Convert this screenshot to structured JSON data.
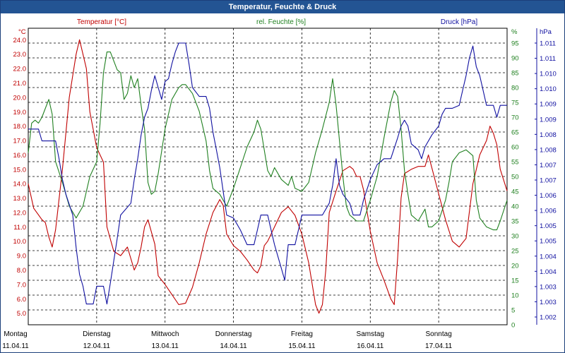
{
  "window": {
    "title": "Temperatur, Feuchte & Druck"
  },
  "colors": {
    "temperature": "#c00000",
    "humidity": "#208020",
    "pressure": "#1010a0",
    "titlebar": "#235493"
  },
  "chart_data": {
    "type": "line",
    "title": "Temperatur, Feuchte & Druck",
    "grid": true,
    "x_ticks": [
      {
        "day": "Montag",
        "date": "11.04.11",
        "pos": 0
      },
      {
        "day": "Dienstag",
        "date": "12.04.11",
        "pos": 1
      },
      {
        "day": "Mittwoch",
        "date": "13.04.11",
        "pos": 2
      },
      {
        "day": "Donnerstag",
        "date": "14.04.11",
        "pos": 3
      },
      {
        "day": "Freitag",
        "date": "15.04.11",
        "pos": 4
      },
      {
        "day": "Samstag",
        "date": "16.04.11",
        "pos": 5
      },
      {
        "day": "Sonntag",
        "date": "17.04.11",
        "pos": 6
      }
    ],
    "xlim": [
      0,
      7
    ],
    "axes": {
      "temperature": {
        "header": "Temperatur [°C]",
        "unit": "°C",
        "ylim": [
          4.2,
          24.8
        ],
        "ticks": [
          "24.0",
          "23.0",
          "22.0",
          "21.0",
          "20.0",
          "19.0",
          "18.0",
          "17.0",
          "16.0",
          "15.0",
          "14.0",
          "13.0",
          "12.0",
          "11.0",
          "10.0",
          "9.0",
          "8.0",
          "7.0",
          "6.0",
          "5.0"
        ]
      },
      "humidity": {
        "header": "rel. Feuchte [%]",
        "unit": "%",
        "ylim": [
          0,
          100
        ],
        "ticks": [
          "95",
          "90",
          "85",
          "80",
          "75",
          "70",
          "65",
          "60",
          "55",
          "50",
          "45",
          "40",
          "35",
          "30",
          "25",
          "20",
          "15",
          "10",
          "5",
          "0"
        ]
      },
      "pressure": {
        "header": "Druck [hPa]",
        "unit": "hPa",
        "ylim": [
          1001.6,
          1011.6
        ],
        "ticks": [
          "1.011",
          "1.011",
          "1.010",
          "1.010",
          "1.009",
          "1.009",
          "1.008",
          "1.008",
          "1.007",
          "1.007",
          "1.006",
          "1.006",
          "1.005",
          "1.005",
          "1.004",
          "1.004",
          "1.003",
          "1.003",
          "1.002"
        ]
      }
    },
    "series": [
      {
        "name": "Temperatur [°C]",
        "axis": "temperature",
        "color": "#c00000",
        "points": [
          [
            0,
            14.0
          ],
          [
            0.08,
            12.3
          ],
          [
            0.2,
            11.5
          ],
          [
            0.25,
            11.3
          ],
          [
            0.3,
            10.3
          ],
          [
            0.35,
            9.6
          ],
          [
            0.4,
            10.8
          ],
          [
            0.5,
            15.0
          ],
          [
            0.6,
            20.0
          ],
          [
            0.7,
            23.0
          ],
          [
            0.75,
            24.0
          ],
          [
            0.85,
            22.0
          ],
          [
            0.9,
            19.0
          ],
          [
            1.0,
            16.5
          ],
          [
            1.1,
            15.5
          ],
          [
            1.15,
            11.0
          ],
          [
            1.25,
            9.3
          ],
          [
            1.35,
            9.0
          ],
          [
            1.45,
            9.6
          ],
          [
            1.55,
            8.0
          ],
          [
            1.6,
            8.5
          ],
          [
            1.65,
            9.6
          ],
          [
            1.7,
            11.0
          ],
          [
            1.75,
            11.5
          ],
          [
            1.85,
            9.8
          ],
          [
            1.9,
            7.6
          ],
          [
            2.0,
            7.0
          ],
          [
            2.1,
            6.3
          ],
          [
            2.2,
            5.6
          ],
          [
            2.3,
            5.7
          ],
          [
            2.4,
            6.8
          ],
          [
            2.5,
            8.5
          ],
          [
            2.6,
            10.5
          ],
          [
            2.7,
            12.0
          ],
          [
            2.8,
            12.9
          ],
          [
            2.85,
            12.5
          ],
          [
            2.9,
            10.5
          ],
          [
            3.0,
            9.7
          ],
          [
            3.1,
            9.3
          ],
          [
            3.2,
            8.7
          ],
          [
            3.3,
            8.0
          ],
          [
            3.35,
            7.8
          ],
          [
            3.4,
            8.3
          ],
          [
            3.45,
            9.7
          ],
          [
            3.5,
            10.0
          ],
          [
            3.6,
            11.0
          ],
          [
            3.7,
            12.0
          ],
          [
            3.8,
            12.4
          ],
          [
            3.9,
            11.8
          ],
          [
            4.0,
            10.5
          ],
          [
            4.1,
            8.5
          ],
          [
            4.2,
            5.6
          ],
          [
            4.25,
            5.0
          ],
          [
            4.3,
            5.6
          ],
          [
            4.35,
            8.0
          ],
          [
            4.4,
            12.0
          ],
          [
            4.5,
            13.5
          ],
          [
            4.6,
            14.9
          ],
          [
            4.7,
            15.2
          ],
          [
            4.75,
            15.0
          ],
          [
            4.8,
            14.5
          ],
          [
            4.85,
            14.5
          ],
          [
            4.9,
            13.6
          ],
          [
            5.0,
            10.7
          ],
          [
            5.1,
            8.5
          ],
          [
            5.2,
            7.3
          ],
          [
            5.3,
            6.0
          ],
          [
            5.35,
            5.6
          ],
          [
            5.4,
            8.8
          ],
          [
            5.45,
            13.0
          ],
          [
            5.5,
            14.7
          ],
          [
            5.6,
            15.0
          ],
          [
            5.7,
            15.2
          ],
          [
            5.8,
            15.2
          ],
          [
            5.85,
            16.0
          ],
          [
            5.9,
            15.1
          ],
          [
            6.0,
            13.3
          ],
          [
            6.1,
            11.5
          ],
          [
            6.2,
            10.0
          ],
          [
            6.3,
            9.6
          ],
          [
            6.4,
            10.2
          ],
          [
            6.5,
            14.0
          ],
          [
            6.6,
            16.0
          ],
          [
            6.7,
            17.0
          ],
          [
            6.75,
            18.0
          ],
          [
            6.8,
            17.5
          ],
          [
            6.85,
            16.7
          ],
          [
            6.9,
            15.0
          ],
          [
            7.0,
            13.5
          ]
        ]
      },
      {
        "name": "rel. Feuchte [%]",
        "axis": "humidity",
        "color": "#208020",
        "points": [
          [
            0,
            58
          ],
          [
            0.05,
            68
          ],
          [
            0.1,
            69
          ],
          [
            0.15,
            68
          ],
          [
            0.2,
            70
          ],
          [
            0.3,
            76
          ],
          [
            0.35,
            71
          ],
          [
            0.4,
            55
          ],
          [
            0.5,
            48
          ],
          [
            0.6,
            40
          ],
          [
            0.7,
            36
          ],
          [
            0.8,
            40
          ],
          [
            0.9,
            50
          ],
          [
            1.0,
            55
          ],
          [
            1.05,
            68
          ],
          [
            1.1,
            85
          ],
          [
            1.15,
            92
          ],
          [
            1.2,
            92
          ],
          [
            1.3,
            86
          ],
          [
            1.35,
            85
          ],
          [
            1.4,
            76
          ],
          [
            1.45,
            78
          ],
          [
            1.5,
            84
          ],
          [
            1.55,
            80
          ],
          [
            1.6,
            83
          ],
          [
            1.65,
            74
          ],
          [
            1.7,
            66
          ],
          [
            1.75,
            48
          ],
          [
            1.8,
            44
          ],
          [
            1.85,
            45
          ],
          [
            1.9,
            51
          ],
          [
            2.0,
            66
          ],
          [
            2.1,
            76
          ],
          [
            2.2,
            80
          ],
          [
            2.25,
            81
          ],
          [
            2.3,
            81
          ],
          [
            2.4,
            78
          ],
          [
            2.5,
            72
          ],
          [
            2.6,
            62
          ],
          [
            2.65,
            52
          ],
          [
            2.7,
            46
          ],
          [
            2.8,
            44
          ],
          [
            2.9,
            40
          ],
          [
            3.0,
            46
          ],
          [
            3.1,
            53
          ],
          [
            3.2,
            60
          ],
          [
            3.3,
            65
          ],
          [
            3.35,
            69
          ],
          [
            3.4,
            66
          ],
          [
            3.5,
            52
          ],
          [
            3.55,
            50
          ],
          [
            3.6,
            53
          ],
          [
            3.7,
            49
          ],
          [
            3.8,
            47
          ],
          [
            3.85,
            50
          ],
          [
            3.9,
            46
          ],
          [
            4.0,
            45
          ],
          [
            4.1,
            48
          ],
          [
            4.2,
            58
          ],
          [
            4.3,
            66
          ],
          [
            4.4,
            75
          ],
          [
            4.45,
            83
          ],
          [
            4.5,
            74
          ],
          [
            4.6,
            50
          ],
          [
            4.65,
            40
          ],
          [
            4.7,
            37
          ],
          [
            4.8,
            35
          ],
          [
            4.9,
            35
          ],
          [
            5.0,
            42
          ],
          [
            5.1,
            50
          ],
          [
            5.2,
            63
          ],
          [
            5.3,
            75
          ],
          [
            5.35,
            79
          ],
          [
            5.4,
            77
          ],
          [
            5.45,
            66
          ],
          [
            5.5,
            52
          ],
          [
            5.55,
            44
          ],
          [
            5.6,
            37
          ],
          [
            5.7,
            35
          ],
          [
            5.8,
            39
          ],
          [
            5.85,
            33
          ],
          [
            5.9,
            33
          ],
          [
            6.0,
            35
          ],
          [
            6.1,
            42
          ],
          [
            6.15,
            48
          ],
          [
            6.2,
            55
          ],
          [
            6.3,
            58
          ],
          [
            6.4,
            59
          ],
          [
            6.5,
            57
          ],
          [
            6.55,
            42
          ],
          [
            6.6,
            36
          ],
          [
            6.7,
            33
          ],
          [
            6.8,
            32
          ],
          [
            6.85,
            32
          ],
          [
            6.9,
            35
          ],
          [
            7.0,
            42
          ]
        ]
      },
      {
        "name": "Druck [hPa]",
        "axis": "pressure",
        "color": "#1010a0",
        "points": [
          [
            0,
            1008.2
          ],
          [
            0.15,
            1008.2
          ],
          [
            0.2,
            1007.8
          ],
          [
            0.4,
            1007.8
          ],
          [
            0.45,
            1007.2
          ],
          [
            0.5,
            1006.5
          ],
          [
            0.55,
            1006.0
          ],
          [
            0.65,
            1005.3
          ],
          [
            0.7,
            1004.2
          ],
          [
            0.75,
            1003.3
          ],
          [
            0.8,
            1002.9
          ],
          [
            0.85,
            1002.3
          ],
          [
            0.95,
            1002.3
          ],
          [
            1.0,
            1002.9
          ],
          [
            1.1,
            1002.9
          ],
          [
            1.15,
            1002.3
          ],
          [
            1.2,
            1003.0
          ],
          [
            1.3,
            1004.5
          ],
          [
            1.35,
            1005.3
          ],
          [
            1.5,
            1005.7
          ],
          [
            1.55,
            1006.5
          ],
          [
            1.6,
            1007.2
          ],
          [
            1.65,
            1008.0
          ],
          [
            1.7,
            1008.6
          ],
          [
            1.75,
            1008.9
          ],
          [
            1.8,
            1009.5
          ],
          [
            1.85,
            1010.0
          ],
          [
            1.9,
            1009.6
          ],
          [
            1.95,
            1009.2
          ],
          [
            2.0,
            1009.8
          ],
          [
            2.05,
            1009.9
          ],
          [
            2.1,
            1010.4
          ],
          [
            2.15,
            1010.8
          ],
          [
            2.2,
            1011.1
          ],
          [
            2.3,
            1011.1
          ],
          [
            2.35,
            1010.4
          ],
          [
            2.4,
            1009.6
          ],
          [
            2.5,
            1009.3
          ],
          [
            2.6,
            1009.3
          ],
          [
            2.65,
            1008.9
          ],
          [
            2.7,
            1008.1
          ],
          [
            2.75,
            1007.5
          ],
          [
            2.8,
            1006.9
          ],
          [
            2.85,
            1006.1
          ],
          [
            2.9,
            1005.3
          ],
          [
            3.0,
            1005.2
          ],
          [
            3.1,
            1004.8
          ],
          [
            3.2,
            1004.3
          ],
          [
            3.3,
            1004.3
          ],
          [
            3.35,
            1004.8
          ],
          [
            3.4,
            1005.3
          ],
          [
            3.5,
            1005.3
          ],
          [
            3.55,
            1004.8
          ],
          [
            3.6,
            1004.3
          ],
          [
            3.7,
            1003.5
          ],
          [
            3.75,
            1003.1
          ],
          [
            3.8,
            1004.3
          ],
          [
            3.9,
            1004.3
          ],
          [
            3.95,
            1004.8
          ],
          [
            4.0,
            1005.3
          ],
          [
            4.1,
            1005.3
          ],
          [
            4.2,
            1005.3
          ],
          [
            4.3,
            1005.3
          ],
          [
            4.4,
            1005.7
          ],
          [
            4.45,
            1006.3
          ],
          [
            4.5,
            1007.2
          ],
          [
            4.55,
            1006.3
          ],
          [
            4.6,
            1006.0
          ],
          [
            4.7,
            1005.7
          ],
          [
            4.75,
            1005.3
          ],
          [
            4.85,
            1005.3
          ],
          [
            4.9,
            1005.8
          ],
          [
            5.0,
            1006.5
          ],
          [
            5.1,
            1007.0
          ],
          [
            5.2,
            1007.2
          ],
          [
            5.3,
            1007.2
          ],
          [
            5.4,
            1007.9
          ],
          [
            5.45,
            1008.3
          ],
          [
            5.5,
            1008.5
          ],
          [
            5.55,
            1008.3
          ],
          [
            5.6,
            1007.7
          ],
          [
            5.7,
            1007.5
          ],
          [
            5.75,
            1007.2
          ],
          [
            5.8,
            1007.6
          ],
          [
            5.9,
            1008.0
          ],
          [
            6.0,
            1008.3
          ],
          [
            6.05,
            1008.7
          ],
          [
            6.1,
            1008.9
          ],
          [
            6.2,
            1008.9
          ],
          [
            6.3,
            1009.0
          ],
          [
            6.35,
            1009.5
          ],
          [
            6.4,
            1010.0
          ],
          [
            6.45,
            1010.6
          ],
          [
            6.5,
            1011.0
          ],
          [
            6.55,
            1010.3
          ],
          [
            6.6,
            1010.0
          ],
          [
            6.65,
            1009.5
          ],
          [
            6.7,
            1009.0
          ],
          [
            6.8,
            1009.0
          ],
          [
            6.85,
            1008.6
          ],
          [
            6.9,
            1009.0
          ],
          [
            7.0,
            1009.0
          ]
        ]
      }
    ]
  }
}
